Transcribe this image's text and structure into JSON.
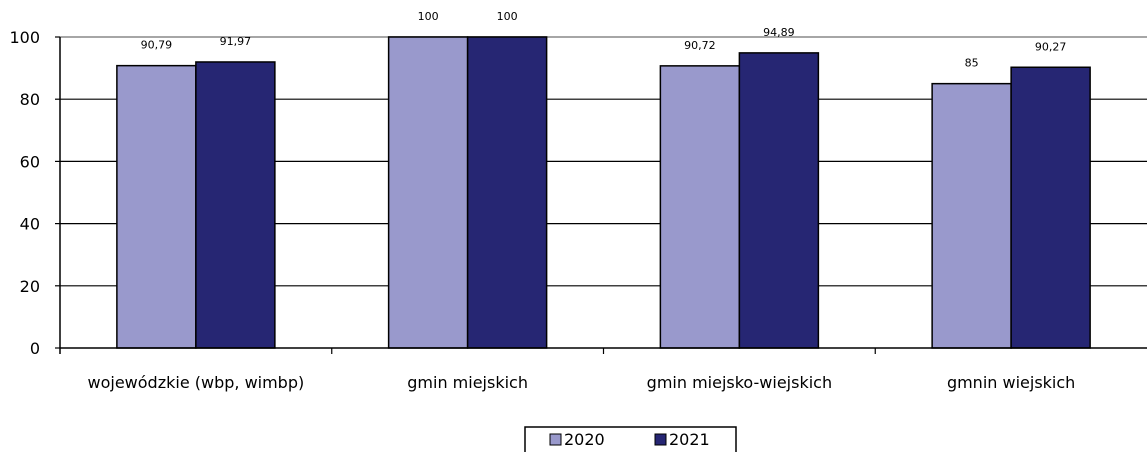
{
  "chart_data": {
    "type": "bar",
    "categories": [
      "wojewódzkie (wbp, wimbp)",
      "gmin miejskich",
      "gmin miejsko-wiejskich",
      "gmnin wiejskich"
    ],
    "series": [
      {
        "name": "2020",
        "values": [
          90.79,
          100,
          90.72,
          85
        ],
        "labels": [
          "90,79",
          "100",
          "90,72",
          "85"
        ],
        "color": "#9999cc"
      },
      {
        "name": "2021",
        "values": [
          91.97,
          100,
          94.89,
          90.27
        ],
        "labels": [
          "91,97",
          "100",
          "94,89",
          "90,27"
        ],
        "color": "#262673"
      }
    ],
    "title": "",
    "xlabel": "",
    "ylabel": "",
    "ylim": [
      0,
      100
    ],
    "yticks": [
      0,
      20,
      40,
      60,
      80,
      100
    ],
    "grid": true,
    "legend": "bottom-center"
  }
}
